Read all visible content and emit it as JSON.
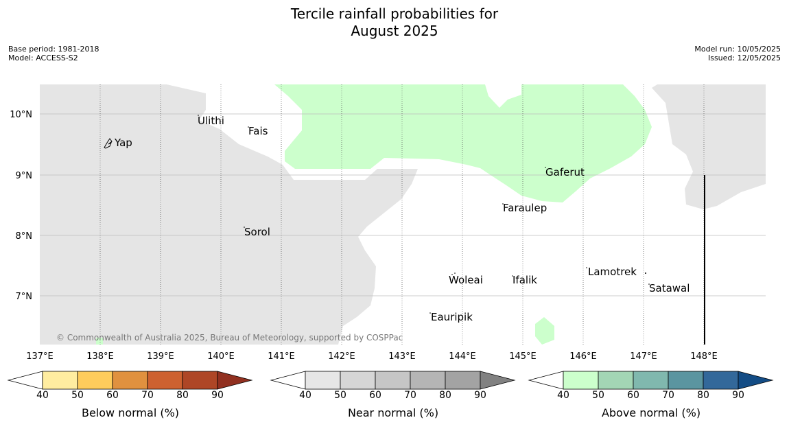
{
  "title": {
    "line1": "Tercile rainfall probabilities for",
    "line2": "August 2025"
  },
  "meta_left": {
    "base_period": "Base period: 1981-2018",
    "model": "Model: ACCESS-S2"
  },
  "meta_right": {
    "model_run": "Model run: 10/05/2025",
    "issued": "Issued: 12/05/2025"
  },
  "map": {
    "lon_labels": [
      "137°E",
      "138°E",
      "139°E",
      "140°E",
      "141°E",
      "142°E",
      "143°E",
      "144°E",
      "145°E",
      "146°E",
      "147°E",
      "148°E"
    ],
    "lat_labels": [
      "10°N",
      "9°N",
      "8°N",
      "7°N"
    ],
    "places": [
      "Ulithi",
      "Fais",
      "Yap",
      "Gaferut",
      "Faraulep",
      "Sorol",
      "Lamotrek",
      "Woleai",
      "Ifalik",
      "Satawal",
      "Eauripik"
    ],
    "copyright": "© Commonwealth of Australia 2025, Bureau of Meteorology, supported by COSPPac",
    "colors": {
      "near_normal_area": "#e5e5e5",
      "above_normal_area": "#ccffcc"
    }
  },
  "colorbars": [
    {
      "label": "Below normal (%)",
      "ticks": [
        "40",
        "50",
        "60",
        "70",
        "80",
        "90"
      ],
      "colors": [
        "#ffffff",
        "#ffeda0",
        "#fecc5c",
        "#e0913f",
        "#cd6130",
        "#ae4626",
        "#913020"
      ]
    },
    {
      "label": "Near normal (%)",
      "ticks": [
        "40",
        "50",
        "60",
        "70",
        "80",
        "90"
      ],
      "colors": [
        "#ffffff",
        "#e6e6e6",
        "#d6d6d6",
        "#c6c6c6",
        "#b5b5b5",
        "#a3a3a3",
        "#818181"
      ]
    },
    {
      "label": "Above normal (%)",
      "ticks": [
        "40",
        "50",
        "60",
        "70",
        "80",
        "90"
      ],
      "colors": [
        "#ffffff",
        "#ccffcc",
        "#a3d6b5",
        "#80b8ae",
        "#5b95a0",
        "#33689a",
        "#134c85"
      ]
    }
  ]
}
